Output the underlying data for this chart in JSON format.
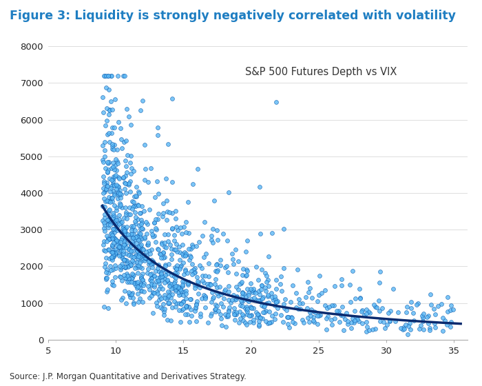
{
  "title": "Figure 3: Liquidity is strongly negatively correlated with volatility",
  "title_color": "#1F7EC2",
  "annotation": "S&P 500 Futures Depth vs VIX",
  "annotation_color": "#333333",
  "source": "Source: J.P. Morgan Quantitative and Derivatives Strategy.",
  "scatter_color": "#5BB8F5",
  "scatter_edge_color": "#1060B0",
  "curve_color": "#0A2A6E",
  "xlim": [
    5,
    36
  ],
  "ylim": [
    0,
    8000
  ],
  "xticks": [
    5,
    10,
    15,
    20,
    25,
    30,
    35
  ],
  "yticks": [
    0,
    1000,
    2000,
    3000,
    4000,
    5000,
    6000,
    7000,
    8000
  ],
  "curve_a": 110000,
  "curve_b": -1.55,
  "random_seed": 77,
  "n_points": 1200
}
